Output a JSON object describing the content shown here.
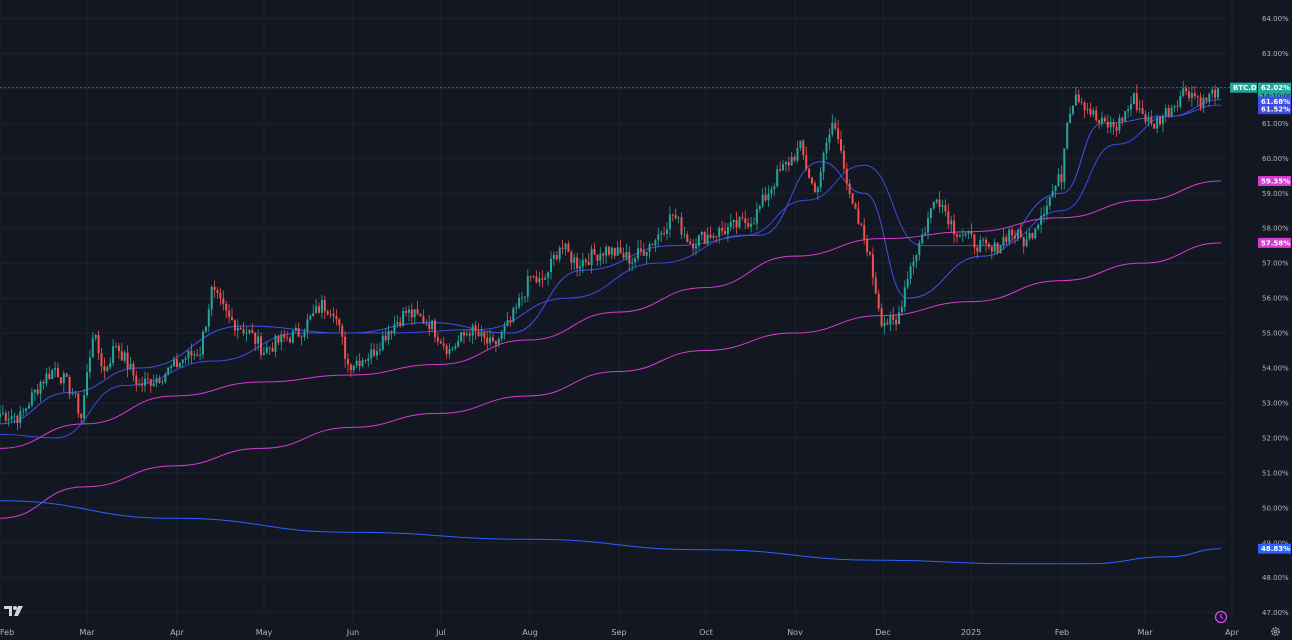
{
  "colors": {
    "background": "#131722",
    "grid": "#1e222d",
    "up": "#26a69a",
    "down": "#ef5350",
    "ma_fast": "#3f51e8",
    "ma_mid": "#3c4ae0",
    "ma_magenta": "#d63bd2",
    "ma_long": "#2962ff",
    "price_line": "#26a69a"
  },
  "icons": {
    "logo": "tradingview-logo-icon",
    "alert": "alert-clock-icon",
    "settings": "gear-icon"
  },
  "chart_data": {
    "type": "candlestick",
    "symbol_label": "BTC.D",
    "y_axis": {
      "ticks": [
        "64.00%",
        "63.00%",
        "62.00%",
        "61.00%",
        "60.00%",
        "59.00%",
        "58.00%",
        "57.00%",
        "56.00%",
        "55.00%",
        "54.00%",
        "53.00%",
        "52.00%",
        "51.00%",
        "50.00%",
        "49.00%",
        "48.00%",
        "47.00%"
      ],
      "range": [
        46.8,
        64.5
      ]
    },
    "x_axis": {
      "ticks": [
        "Feb",
        "Mar",
        "Apr",
        "May",
        "Jun",
        "Jul",
        "Aug",
        "Sep",
        "Oct",
        "Nov",
        "Dec",
        "2025",
        "Feb",
        "Mar",
        "Apr"
      ],
      "range": [
        "2024-02-01",
        "2025-04-01"
      ]
    },
    "price_tags": [
      {
        "label": "BTC.D",
        "value": "62.02%",
        "sub": "14:10:00",
        "color": "#26a69a"
      },
      {
        "value": "61.68%",
        "color": "#3f51e8"
      },
      {
        "value": "61.52%",
        "color": "#3c4ae0"
      },
      {
        "value": "59.35%",
        "color": "#d63bd2"
      },
      {
        "value": "57.58%",
        "color": "#d63bd2"
      },
      {
        "value": "48.83%",
        "color": "#2962ff"
      }
    ],
    "last_price": 62.02,
    "anchors": [
      [
        "2024-02-01",
        52.7
      ],
      [
        "2024-02-08",
        52.6
      ],
      [
        "2024-02-15",
        53.6
      ],
      [
        "2024-02-20",
        54.0
      ],
      [
        "2024-02-26",
        53.3
      ],
      [
        "2024-02-29",
        52.6
      ],
      [
        "2024-03-04",
        55.0
      ],
      [
        "2024-03-08",
        53.9
      ],
      [
        "2024-03-12",
        54.7
      ],
      [
        "2024-03-20",
        53.5
      ],
      [
        "2024-03-28",
        53.8
      ],
      [
        "2024-04-05",
        54.3
      ],
      [
        "2024-04-10",
        54.5
      ],
      [
        "2024-04-14",
        56.2
      ],
      [
        "2024-04-20",
        55.4
      ],
      [
        "2024-04-27",
        55.0
      ],
      [
        "2024-05-02",
        54.5
      ],
      [
        "2024-05-08",
        54.8
      ],
      [
        "2024-05-14",
        55.0
      ],
      [
        "2024-05-22",
        55.8
      ],
      [
        "2024-05-26",
        55.7
      ],
      [
        "2024-05-31",
        54.1
      ],
      [
        "2024-06-08",
        54.4
      ],
      [
        "2024-06-14",
        55.1
      ],
      [
        "2024-06-20",
        55.6
      ],
      [
        "2024-06-28",
        55.3
      ],
      [
        "2024-07-05",
        54.5
      ],
      [
        "2024-07-12",
        55.1
      ],
      [
        "2024-07-20",
        54.6
      ],
      [
        "2024-07-26",
        55.3
      ],
      [
        "2024-08-02",
        56.6
      ],
      [
        "2024-08-06",
        56.4
      ],
      [
        "2024-08-12",
        57.5
      ],
      [
        "2024-08-18",
        57.0
      ],
      [
        "2024-08-28",
        57.4
      ],
      [
        "2024-09-06",
        57.1
      ],
      [
        "2024-09-14",
        57.7
      ],
      [
        "2024-09-20",
        58.4
      ],
      [
        "2024-09-26",
        57.6
      ],
      [
        "2024-10-02",
        57.8
      ],
      [
        "2024-10-10",
        58.0
      ],
      [
        "2024-10-18",
        58.3
      ],
      [
        "2024-10-26",
        59.5
      ],
      [
        "2024-11-03",
        60.3
      ],
      [
        "2024-11-08",
        59.0
      ],
      [
        "2024-11-14",
        61.0
      ],
      [
        "2024-11-17",
        60.4
      ],
      [
        "2024-11-20",
        58.8
      ],
      [
        "2024-11-26",
        57.5
      ],
      [
        "2024-12-01",
        55.4
      ],
      [
        "2024-12-06",
        55.2
      ],
      [
        "2024-12-10",
        56.7
      ],
      [
        "2024-12-16",
        58.0
      ],
      [
        "2024-12-20",
        59.0
      ],
      [
        "2024-12-26",
        58.0
      ],
      [
        "2025-01-02",
        57.6
      ],
      [
        "2025-01-08",
        57.3
      ],
      [
        "2025-01-14",
        57.9
      ],
      [
        "2025-01-20",
        57.6
      ],
      [
        "2025-01-26",
        58.6
      ],
      [
        "2025-02-01",
        59.5
      ],
      [
        "2025-02-03",
        61.2
      ],
      [
        "2025-02-06",
        61.9
      ],
      [
        "2025-02-14",
        61.0
      ],
      [
        "2025-02-20",
        60.9
      ],
      [
        "2025-02-26",
        61.7
      ],
      [
        "2025-03-04",
        60.9
      ],
      [
        "2025-03-10",
        61.4
      ],
      [
        "2025-03-16",
        62.0
      ],
      [
        "2025-03-22",
        61.6
      ],
      [
        "2025-03-27",
        62.0
      ]
    ],
    "moving_averages": [
      {
        "color": "#3f51e8",
        "points": [
          [
            "2024-02-01",
            52.4
          ],
          [
            "2024-02-25",
            53.3
          ],
          [
            "2024-03-20",
            54.0
          ],
          [
            "2024-04-25",
            55.2
          ],
          [
            "2024-05-31",
            55.0
          ],
          [
            "2024-06-28",
            55.3
          ],
          [
            "2024-07-26",
            55.0
          ],
          [
            "2024-08-20",
            56.8
          ],
          [
            "2024-09-20",
            57.5
          ],
          [
            "2024-10-20",
            57.8
          ],
          [
            "2024-11-10",
            59.9
          ],
          [
            "2024-11-25",
            59.0
          ],
          [
            "2024-12-10",
            56.0
          ],
          [
            "2025-01-05",
            57.2
          ],
          [
            "2025-02-01",
            59.0
          ],
          [
            "2025-02-15",
            61.0
          ],
          [
            "2025-03-10",
            61.2
          ],
          [
            "2025-03-28",
            61.68
          ]
        ]
      },
      {
        "color": "#3c4ae0",
        "points": [
          [
            "2024-02-01",
            52.1
          ],
          [
            "2024-02-20",
            52.0
          ],
          [
            "2024-03-15",
            53.5
          ],
          [
            "2024-04-15",
            54.2
          ],
          [
            "2024-05-15",
            55.0
          ],
          [
            "2024-06-15",
            55.0
          ],
          [
            "2024-07-15",
            55.1
          ],
          [
            "2024-08-15",
            56.0
          ],
          [
            "2024-09-15",
            57.0
          ],
          [
            "2024-10-15",
            57.8
          ],
          [
            "2024-11-05",
            58.8
          ],
          [
            "2024-11-25",
            59.8
          ],
          [
            "2024-12-15",
            57.5
          ],
          [
            "2025-01-10",
            57.5
          ],
          [
            "2025-02-01",
            58.5
          ],
          [
            "2025-02-20",
            60.4
          ],
          [
            "2025-03-10",
            61.2
          ],
          [
            "2025-03-28",
            61.52
          ]
        ]
      },
      {
        "color": "#d63bd2",
        "points": [
          [
            "2024-02-01",
            51.7
          ],
          [
            "2024-03-01",
            52.4
          ],
          [
            "2024-04-01",
            53.2
          ],
          [
            "2024-05-01",
            53.6
          ],
          [
            "2024-06-01",
            53.8
          ],
          [
            "2024-07-01",
            54.1
          ],
          [
            "2024-08-01",
            54.8
          ],
          [
            "2024-09-01",
            55.6
          ],
          [
            "2024-10-01",
            56.3
          ],
          [
            "2024-11-01",
            57.2
          ],
          [
            "2024-12-01",
            57.7
          ],
          [
            "2025-01-01",
            57.9
          ],
          [
            "2025-02-01",
            58.3
          ],
          [
            "2025-03-01",
            58.8
          ],
          [
            "2025-03-28",
            59.35
          ]
        ]
      },
      {
        "color": "#d63bd2",
        "points": [
          [
            "2024-02-01",
            49.7
          ],
          [
            "2024-03-01",
            50.6
          ],
          [
            "2024-04-01",
            51.2
          ],
          [
            "2024-05-01",
            51.7
          ],
          [
            "2024-06-01",
            52.3
          ],
          [
            "2024-07-01",
            52.7
          ],
          [
            "2024-08-01",
            53.2
          ],
          [
            "2024-09-01",
            53.9
          ],
          [
            "2024-10-01",
            54.5
          ],
          [
            "2024-11-01",
            55.0
          ],
          [
            "2024-12-01",
            55.5
          ],
          [
            "2025-01-01",
            55.9
          ],
          [
            "2025-02-01",
            56.5
          ],
          [
            "2025-03-01",
            57.0
          ],
          [
            "2025-03-28",
            57.58
          ]
        ]
      },
      {
        "color": "#2962ff",
        "points": [
          [
            "2024-02-01",
            50.2
          ],
          [
            "2024-04-01",
            49.7
          ],
          [
            "2024-06-01",
            49.3
          ],
          [
            "2024-08-01",
            49.1
          ],
          [
            "2024-10-01",
            48.8
          ],
          [
            "2024-12-01",
            48.5
          ],
          [
            "2025-01-15",
            48.4
          ],
          [
            "2025-02-10",
            48.4
          ],
          [
            "2025-03-10",
            48.6
          ],
          [
            "2025-03-28",
            48.83
          ]
        ]
      }
    ]
  }
}
